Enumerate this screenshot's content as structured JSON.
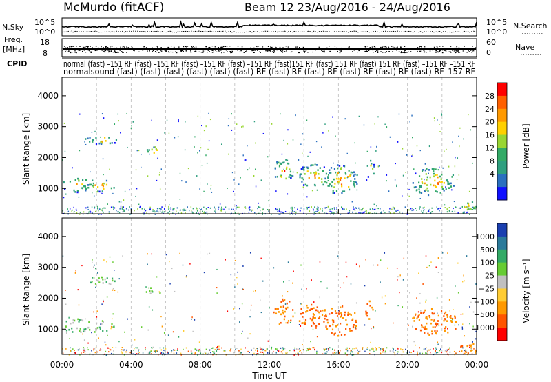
{
  "header": {
    "station": "McMurdo (fitACF)",
    "beam_date": "Beam 12 23/Aug/2016 - 24/Aug/2016"
  },
  "status_panels": {
    "nsky": {
      "label": "N.Sky",
      "ticks": [
        "10^5",
        "10^0"
      ],
      "right_label": "N.Search",
      "right_ticks": [
        "10^5",
        "10^0"
      ]
    },
    "freq": {
      "label_line1": "Freq.",
      "label_line2": "[MHz]",
      "ticks": [
        "18",
        "8"
      ],
      "right_label": "Nave",
      "right_ticks": [
        "60",
        "0"
      ]
    },
    "cpid": {
      "label": "CPID",
      "line1": "normal (fast) –151 RF (fast) –151 RF (fast) –151 RF (fast) –151 RF (fast)151 RF (fast) 151 RF (fast) 151 RF (fast) –151 RF –151 RF",
      "line2": "normalsound (fast) (fast) (fast) (fast) (fast) (fast) RF (fast) RF (fast) RF (fast) RF (fast) RF (fast) RF–157 RF"
    }
  },
  "chart_data": [
    {
      "type": "heatmap",
      "panel": "power",
      "ylabel": "Slant Range [km]",
      "xlabel": "",
      "ylim": [
        180,
        4600
      ],
      "xlim": [
        "00:00",
        "24:00"
      ],
      "yticks": [
        "1000",
        "2000",
        "3000",
        "4000"
      ],
      "colorbar": {
        "label": "Power [dB]",
        "ticks": [
          "28",
          "24",
          "20",
          "16",
          "12",
          "8",
          "4"
        ],
        "colors": [
          "#ff0000",
          "#ff6000",
          "#ff9900",
          "#ffd000",
          "#99d633",
          "#33aa66",
          "#2f9f7f",
          "#2a6fbf",
          "#1010ff"
        ]
      },
      "blobs": [
        {
          "t": 0.8,
          "r": 1150,
          "dt": 0.8,
          "dr": 250
        },
        {
          "t": 2.2,
          "r": 1100,
          "dt": 0.8,
          "dr": 200
        },
        {
          "t": 2.3,
          "r": 2600,
          "dt": 1.0,
          "dr": 150
        },
        {
          "t": 5.3,
          "r": 2250,
          "dt": 0.5,
          "dr": 120
        },
        {
          "t": 12.8,
          "r": 1600,
          "dt": 0.6,
          "dr": 400
        },
        {
          "t": 14.5,
          "r": 1450,
          "dt": 0.9,
          "dr": 400
        },
        {
          "t": 16.1,
          "r": 1300,
          "dt": 1.0,
          "dr": 500
        },
        {
          "t": 17.8,
          "r": 1650,
          "dt": 0.3,
          "dr": 300
        },
        {
          "t": 21.5,
          "r": 1250,
          "dt": 1.4,
          "dr": 450
        },
        {
          "t": 23.5,
          "r": 400,
          "dt": 0.5,
          "dr": 200
        }
      ]
    },
    {
      "type": "heatmap",
      "panel": "velocity",
      "ylabel": "Slant Range [km]",
      "xlabel": "Time UT",
      "ylim": [
        180,
        4600
      ],
      "xlim": [
        "00:00",
        "24:00"
      ],
      "yticks": [
        "1000",
        "2000",
        "3000",
        "4000"
      ],
      "xticks": [
        "00:00",
        "04:00",
        "08:00",
        "12:00",
        "16:00",
        "20:00",
        "00:00"
      ],
      "colorbar": {
        "label": "Velocity [m s⁻¹]",
        "ticks": [
          "1000",
          "500",
          "100",
          "25",
          "−25",
          "−100",
          "−500",
          "−1000"
        ],
        "colors": [
          "#1a3fb0",
          "#2b7a9a",
          "#33aa66",
          "#66cc33",
          "#c0c0c0",
          "#ffcc33",
          "#ff9900",
          "#ff5500",
          "#ff0000"
        ]
      },
      "blobs": [
        {
          "t": 0.8,
          "r": 1150,
          "dt": 0.8,
          "dr": 250
        },
        {
          "t": 2.2,
          "r": 1100,
          "dt": 0.8,
          "dr": 200
        },
        {
          "t": 2.3,
          "r": 2600,
          "dt": 1.0,
          "dr": 150
        },
        {
          "t": 5.3,
          "r": 2250,
          "dt": 0.5,
          "dr": 120
        },
        {
          "t": 12.8,
          "r": 1600,
          "dt": 0.6,
          "dr": 400
        },
        {
          "t": 14.5,
          "r": 1450,
          "dt": 0.9,
          "dr": 400
        },
        {
          "t": 16.1,
          "r": 1300,
          "dt": 1.0,
          "dr": 500
        },
        {
          "t": 17.8,
          "r": 1650,
          "dt": 0.3,
          "dr": 300
        },
        {
          "t": 21.5,
          "r": 1250,
          "dt": 1.4,
          "dr": 450
        },
        {
          "t": 23.5,
          "r": 400,
          "dt": 0.5,
          "dr": 200
        }
      ]
    }
  ]
}
